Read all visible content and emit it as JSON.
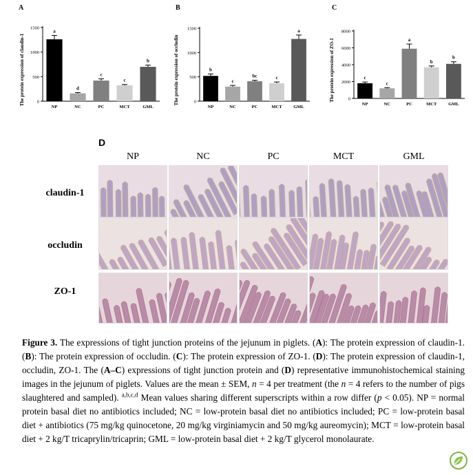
{
  "charts": [
    {
      "id": "A",
      "panel_label": "A",
      "chart_data": {
        "type": "bar",
        "ylabel": "The protein expression of claudin-1",
        "categories": [
          "NP",
          "NC",
          "PC",
          "MCT",
          "GML"
        ],
        "values": [
          1260,
          160,
          420,
          325,
          700
        ],
        "errors": [
          80,
          15,
          35,
          15,
          35
        ],
        "letters": [
          "a",
          "d",
          "c",
          "c",
          "b"
        ],
        "colors": [
          "#000000",
          "#a6a6a6",
          "#808080",
          "#cfcfcf",
          "#595959"
        ],
        "ylim": [
          0,
          1500
        ],
        "yticks": [
          0,
          500,
          1000,
          1500
        ]
      }
    },
    {
      "id": "B",
      "panel_label": "B",
      "chart_data": {
        "type": "bar",
        "ylabel": "The protein expression of occludin",
        "categories": [
          "NP",
          "NC",
          "PC",
          "MCT",
          "GML"
        ],
        "values": [
          520,
          300,
          410,
          370,
          1280
        ],
        "errors": [
          40,
          25,
          20,
          25,
          80
        ],
        "letters": [
          "b",
          "c",
          "bc",
          "c",
          "a"
        ],
        "colors": [
          "#000000",
          "#a6a6a6",
          "#808080",
          "#cfcfcf",
          "#595959"
        ],
        "ylim": [
          0,
          1500
        ],
        "yticks": [
          0,
          500,
          1000,
          1500
        ]
      }
    },
    {
      "id": "C",
      "panel_label": "C",
      "chart_data": {
        "type": "bar",
        "ylabel": "The protein expression of ZO-1",
        "categories": [
          "NP",
          "NC",
          "PC",
          "MCT",
          "GML"
        ],
        "values": [
          1800,
          1200,
          5900,
          3700,
          4100
        ],
        "errors": [
          150,
          80,
          550,
          150,
          250
        ],
        "letters": [
          "c",
          "c",
          "a",
          "b",
          "b"
        ],
        "colors": [
          "#000000",
          "#a6a6a6",
          "#808080",
          "#cfcfcf",
          "#595959"
        ],
        "ylim": [
          0,
          8000
        ],
        "yticks": [
          0,
          2000,
          4000,
          6000,
          8000
        ]
      }
    }
  ],
  "panel_d": {
    "label": "D",
    "columns": [
      "NP",
      "NC",
      "PC",
      "MCT",
      "GML"
    ],
    "rows": [
      "claudin-1",
      "occludin",
      "ZO-1"
    ]
  },
  "caption": {
    "title": "Figure 3.",
    "t1": " The expressions of tight junction proteins of the jejunum in piglets. (",
    "A1": "A",
    "t2": "): The protein expression of claudin-1. (",
    "B1": "B",
    "t3": "): The protein expression of occludin. (",
    "C1": "C",
    "t4": "): The protein expression of ZO-1. (",
    "D1": "D",
    "t5": "): The protein expression of claudin-1, occludin, ZO-1. The (",
    "AC": "A–C",
    "t6": ") expressions of tight junction protein and (",
    "D2": "D",
    "t7": ") representative immunohistochemical staining images in the jejunum of piglets. Values are the mean ± SEM, ",
    "n1": "n",
    "t8": " = 4 per treatment (the ",
    "n2": "n",
    "t9": " = 4 refers to the number of pigs slaughtered and sampled). ",
    "sup": "a,b,c,d",
    "t10": " Mean values sharing different superscripts within a row differ (",
    "p": "p",
    "t11": " < 0.05). NP = normal protein basal diet no antibiotics included; NC = low-protein basal diet no antibiotics included; PC = low-protein basal diet + antibiotics (75 mg/kg quinocetone, 20 mg/kg virginiamycin and 50 mg/kg aureomycin); MCT = low-protein basal diet + 2 kg/T tricaprylin/tricaprin; GML = low-protein basal diet + 2 kg/T glycerol monolaurate."
  },
  "badge_icon": "leaf-badge-icon"
}
